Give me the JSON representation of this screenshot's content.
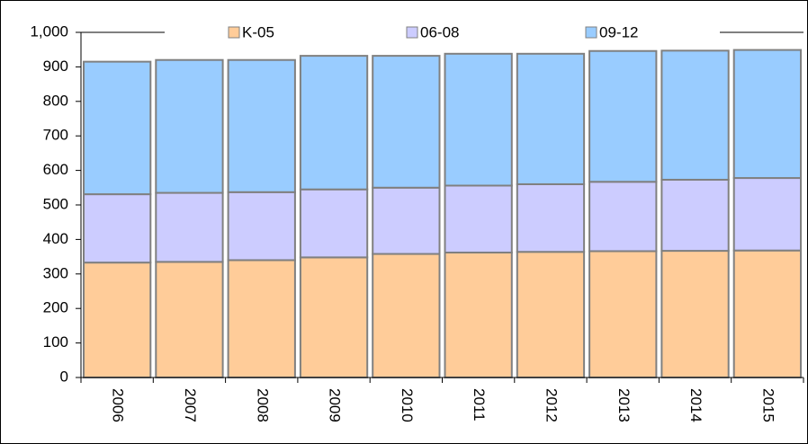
{
  "chart_data": {
    "type": "stacked_bar",
    "categories": [
      "2006",
      "2007",
      "2008",
      "2009",
      "2010",
      "2011",
      "2012",
      "2013",
      "2014",
      "2015"
    ],
    "series": [
      {
        "name": "K-05",
        "color": "#ffcc99",
        "values": [
          333,
          335,
          340,
          348,
          358,
          362,
          364,
          366,
          367,
          368
        ]
      },
      {
        "name": "06-08",
        "color": "#ccccff",
        "values": [
          198,
          200,
          197,
          197,
          192,
          194,
          196,
          201,
          206,
          210
        ]
      },
      {
        "name": "09-12",
        "color": "#99ccff",
        "values": [
          384,
          385,
          383,
          387,
          382,
          382,
          378,
          379,
          374,
          371
        ]
      }
    ],
    "ylim": [
      0,
      1000
    ],
    "yticks": [
      0,
      100,
      200,
      300,
      400,
      500,
      600,
      700,
      800,
      900,
      {
        "value": 1000,
        "label": "1,000"
      }
    ],
    "legend": "top",
    "grid": false
  }
}
